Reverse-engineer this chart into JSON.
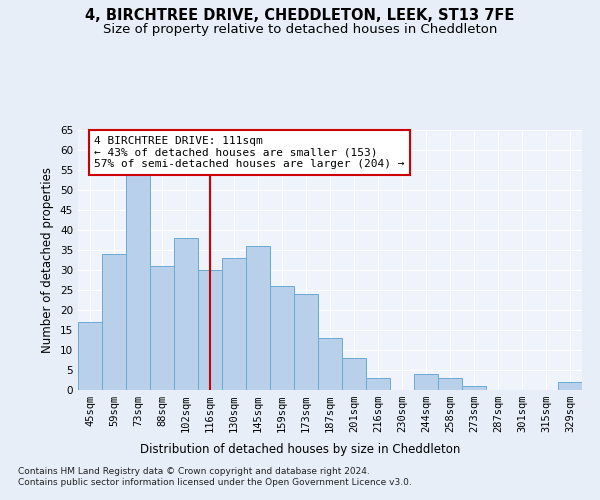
{
  "title_line1": "4, BIRCHTREE DRIVE, CHEDDLETON, LEEK, ST13 7FE",
  "title_line2": "Size of property relative to detached houses in Cheddleton",
  "xlabel": "Distribution of detached houses by size in Cheddleton",
  "ylabel": "Number of detached properties",
  "footnote": "Contains HM Land Registry data © Crown copyright and database right 2024.\nContains public sector information licensed under the Open Government Licence v3.0.",
  "categories": [
    "45sqm",
    "59sqm",
    "73sqm",
    "88sqm",
    "102sqm",
    "116sqm",
    "130sqm",
    "145sqm",
    "159sqm",
    "173sqm",
    "187sqm",
    "201sqm",
    "216sqm",
    "230sqm",
    "244sqm",
    "258sqm",
    "273sqm",
    "287sqm",
    "301sqm",
    "315sqm",
    "329sqm"
  ],
  "values": [
    17,
    34,
    54,
    31,
    38,
    30,
    33,
    36,
    26,
    24,
    13,
    8,
    3,
    0,
    4,
    3,
    1,
    0,
    0,
    0,
    2
  ],
  "bar_color": "#b8d0ea",
  "bar_edge_color": "#6aaad4",
  "bar_width": 1.0,
  "vline_x": 5.0,
  "vline_color": "#cc0000",
  "annotation_text": "4 BIRCHTREE DRIVE: 111sqm\n← 43% of detached houses are smaller (153)\n57% of semi-detached houses are larger (204) →",
  "ylim": [
    0,
    65
  ],
  "yticks": [
    0,
    5,
    10,
    15,
    20,
    25,
    30,
    35,
    40,
    45,
    50,
    55,
    60,
    65
  ],
  "bg_color": "#e8eef8",
  "plot_bg": "#eef3fc",
  "grid_color": "#ffffff",
  "title_fontsize": 10.5,
  "subtitle_fontsize": 9.5,
  "axis_label_fontsize": 8.5,
  "tick_fontsize": 7.5,
  "annotation_fontsize": 8,
  "footnote_fontsize": 6.5
}
